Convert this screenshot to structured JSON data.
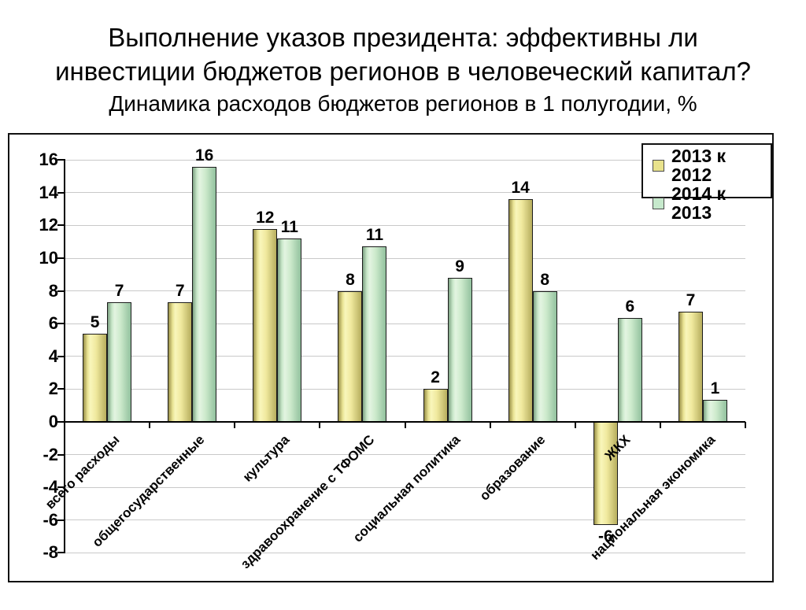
{
  "title_line1": "Выполнение указов президента: эффективны ли",
  "title_line2": "инвестиции бюджетов регионов в человеческий капитал?",
  "subtitle": "Динамика расходов бюджетов регионов в 1 полугодии, %",
  "chart_data": {
    "type": "bar",
    "title": "Выполнение указов президента: эффективны ли инвестиции бюджетов регионов в человеческий капитал?",
    "subtitle": "Динамика расходов бюджетов регионов в 1 полугодии, %",
    "categories": [
      "всего расходы",
      "общегосударственные",
      "культура",
      "здравоохранение с ТФОМС",
      "социальная политика",
      "образование",
      "ЖКХ",
      "национальная экономика"
    ],
    "series": [
      {
        "name": "2013 к 2012",
        "values": [
          5,
          7,
          12,
          8,
          2,
          14,
          -6,
          7
        ],
        "drawn_values": [
          5.4,
          7.3,
          11.8,
          8.0,
          2.0,
          13.6,
          -6.3,
          6.75
        ],
        "labels": [
          "5",
          "7",
          "12",
          "8",
          "2",
          "14",
          "-6",
          "7"
        ],
        "legend_color": "#e8e28c",
        "gradient": [
          "#978e48",
          "#e8e292",
          "#f9f6bb",
          "#f0e99e",
          "#b7ae5e"
        ]
      },
      {
        "name": "2014 к 2013",
        "values": [
          7,
          16,
          11,
          11,
          9,
          8,
          6,
          1
        ],
        "drawn_values": [
          7.3,
          15.6,
          11.2,
          10.7,
          8.8,
          8.0,
          6.35,
          1.35
        ],
        "labels": [
          "7",
          "16",
          "11",
          "11",
          "9",
          "8",
          "6",
          "1"
        ],
        "legend_color": "#c6e9cc",
        "gradient": [
          "#7da283",
          "#c9e7c9",
          "#e3f4e1",
          "#cdeacc",
          "#92c19e"
        ]
      }
    ],
    "ylim": [
      -8,
      16
    ],
    "ytick_step": 2,
    "yticks": [
      16,
      14,
      12,
      10,
      8,
      6,
      4,
      2,
      0,
      -2,
      -4,
      -6,
      -8
    ],
    "grid": true,
    "legend_position": "top-right",
    "xlabel": "",
    "ylabel": "",
    "colors": {
      "gridline": "#c9c9c9",
      "axis": "#000000",
      "bar_border": "#1c1c1c",
      "plot_bg": "#ffffff",
      "text": "#000000"
    }
  }
}
